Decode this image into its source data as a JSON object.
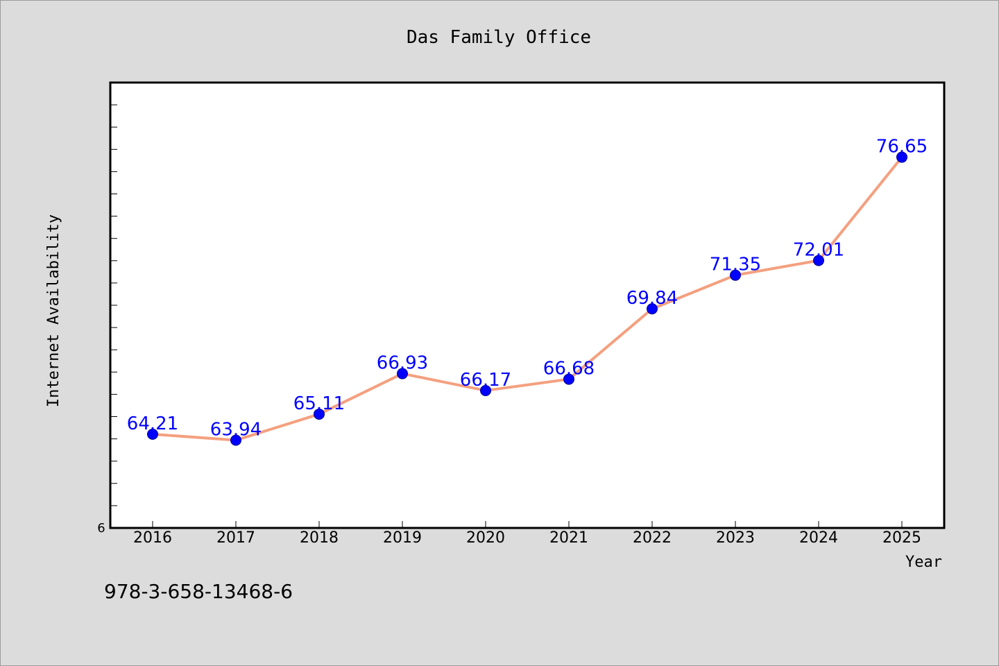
{
  "chart_data": {
    "type": "line",
    "title": "Das Family Office",
    "xlabel": "Year",
    "ylabel": "Internet Availability",
    "categories": [
      "2016",
      "2017",
      "2018",
      "2019",
      "2020",
      "2021",
      "2022",
      "2023",
      "2024",
      "2025"
    ],
    "series": [
      {
        "values": [
          64.21,
          63.94,
          65.11,
          66.93,
          66.17,
          66.68,
          69.84,
          71.35,
          72.01,
          76.65
        ],
        "data_labels": [
          "64.21",
          "63.94",
          "65.11",
          "66.93",
          "66.17",
          "66.68",
          "69.84",
          "71.35",
          "72.01",
          "76.65"
        ],
        "line_color": "#f4a07f",
        "marker_color": "#0000ff"
      }
    ],
    "ylim": [
      60,
      80
    ],
    "y_tick_labels": [
      "6"
    ],
    "grid": false,
    "footer_text": "978-3-658-13468-6"
  }
}
